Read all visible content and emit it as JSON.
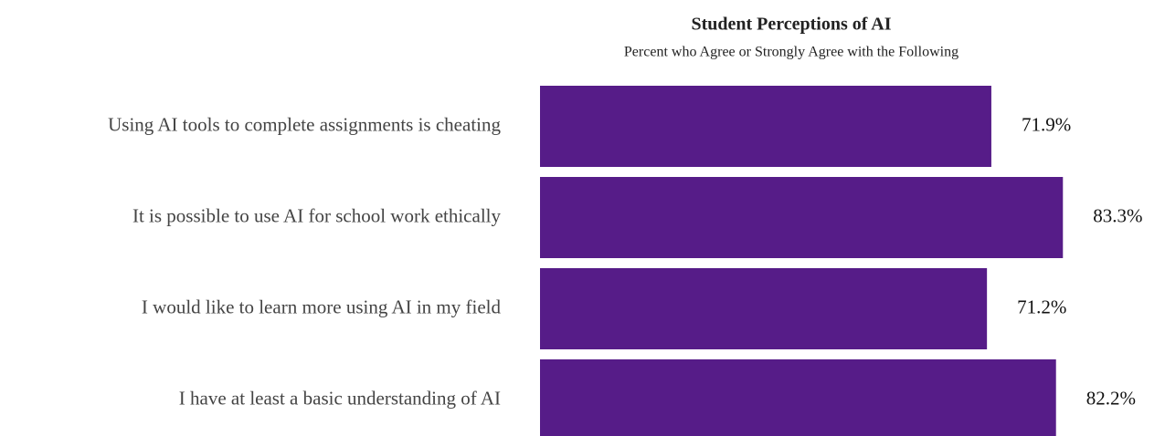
{
  "chart_data": {
    "type": "bar",
    "orientation": "horizontal",
    "title": "Student Perceptions of AI",
    "subtitle": "Percent who Agree or Strongly Agree with the Following",
    "categories": [
      "Using AI tools to complete assignments is cheating",
      "It is possible to use AI for school work ethically",
      "I would like to learn more using AI in my field",
      "I have at least a basic understanding of AI"
    ],
    "values": [
      71.9,
      83.3,
      71.2,
      82.2
    ],
    "value_labels": [
      "71.9%",
      "83.3%",
      "71.2%",
      "82.2%"
    ],
    "color": "#561c88"
  }
}
